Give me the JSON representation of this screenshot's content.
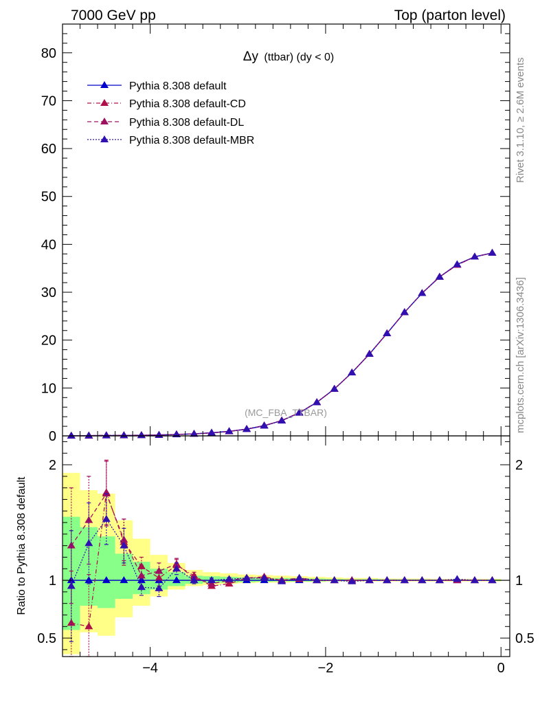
{
  "header": {
    "left": "7000 GeV pp",
    "right": "Top (parton level)"
  },
  "side_labels": {
    "rivet": "Rivet 3.1.10, ≥ 2.6M events",
    "mcplots": "mcplots.cern.ch [arXiv:1306.3436]"
  },
  "watermark": "(MC_FBA_TTBAR)",
  "colors": {
    "default": "#0000cc",
    "cd": "#b0104a",
    "dl": "#a01060",
    "mbr": "#3010b0",
    "band_yellow": "#ffff88",
    "band_green": "#88ff88"
  },
  "chart_data": [
    {
      "type": "line",
      "title_main": "Δy",
      "title_sub": "(ttbar) (dy < 0)",
      "xlabel": "",
      "ylabel": "",
      "xlim": [
        -5.0,
        0.1
      ],
      "ylim": [
        0,
        86
      ],
      "yticks": [
        0,
        10,
        20,
        30,
        40,
        50,
        60,
        70,
        80
      ],
      "xticks": [
        -4,
        -2,
        0
      ],
      "x": [
        -4.9,
        -4.7,
        -4.5,
        -4.3,
        -4.1,
        -3.9,
        -3.7,
        -3.5,
        -3.3,
        -3.1,
        -2.9,
        -2.7,
        -2.5,
        -2.3,
        -2.1,
        -1.9,
        -1.7,
        -1.5,
        -1.3,
        -1.1,
        -0.9,
        -0.7,
        -0.5,
        -0.3,
        -0.1
      ],
      "series": [
        {
          "name": "Pythia 8.308 default",
          "style": "solid",
          "values": [
            0.02,
            0.04,
            0.06,
            0.08,
            0.12,
            0.18,
            0.28,
            0.42,
            0.65,
            0.95,
            1.4,
            2.1,
            3.2,
            4.8,
            7.0,
            9.8,
            13.2,
            17.1,
            21.4,
            25.8,
            29.8,
            33.2,
            35.8,
            37.4,
            38.2
          ]
        },
        {
          "name": "Pythia 8.308 default-CD",
          "style": "dashdot",
          "values": [
            0.01,
            0.02,
            0.1,
            0.1,
            0.13,
            0.17,
            0.3,
            0.42,
            0.61,
            0.92,
            1.42,
            2.15,
            3.2,
            4.85,
            7.02,
            9.8,
            13.2,
            17.1,
            21.4,
            25.8,
            29.8,
            33.2,
            35.7,
            37.4,
            38.2
          ]
        },
        {
          "name": "Pythia 8.308 default-DL",
          "style": "dashed",
          "values": [
            0.03,
            0.06,
            0.1,
            0.1,
            0.14,
            0.19,
            0.3,
            0.42,
            0.62,
            0.93,
            1.42,
            2.14,
            3.2,
            4.85,
            7.0,
            9.8,
            13.2,
            17.1,
            21.4,
            25.8,
            29.8,
            33.2,
            35.7,
            37.4,
            38.2
          ]
        },
        {
          "name": "Pythia 8.308 default-MBR",
          "style": "dotted",
          "values": [
            0.02,
            0.05,
            0.09,
            0.1,
            0.11,
            0.17,
            0.29,
            0.42,
            0.64,
            0.96,
            1.42,
            2.14,
            3.15,
            4.85,
            7.0,
            9.8,
            13.2,
            17.1,
            21.4,
            25.8,
            29.8,
            33.2,
            35.8,
            37.4,
            38.2
          ]
        }
      ]
    },
    {
      "type": "line",
      "ylabel": "Ratio to Pythia 8.308 default",
      "xlim": [
        -5.0,
        0.1
      ],
      "ylim": [
        0.34,
        2.25
      ],
      "yticks_major": [
        0.5,
        1,
        2
      ],
      "xticks": [
        -4,
        -2,
        0
      ],
      "x": [
        -4.9,
        -4.7,
        -4.5,
        -4.3,
        -4.1,
        -3.9,
        -3.7,
        -3.5,
        -3.3,
        -3.1,
        -2.9,
        -2.7,
        -2.5,
        -2.3,
        -2.1,
        -1.9,
        -1.7,
        -1.5,
        -1.3,
        -1.1,
        -0.9,
        -0.7,
        -0.5,
        -0.3,
        -0.1
      ],
      "bands": {
        "yellow_lo": [
          0.36,
          0.55,
          0.52,
          0.68,
          0.78,
          0.86,
          0.92,
          0.95,
          0.96,
          0.97,
          0.975,
          0.98,
          0.98,
          0.985,
          0.985,
          0.99,
          0.99,
          0.99,
          0.99,
          0.99,
          0.99,
          0.99,
          0.99,
          0.99,
          0.99
        ],
        "yellow_hi": [
          1.93,
          1.78,
          1.75,
          1.52,
          1.36,
          1.22,
          1.15,
          1.09,
          1.07,
          1.06,
          1.05,
          1.045,
          1.04,
          1.035,
          1.03,
          1.025,
          1.02,
          1.02,
          1.015,
          1.015,
          1.015,
          1.012,
          1.012,
          1.012,
          1.012
        ],
        "green_lo": [
          0.57,
          0.78,
          0.76,
          0.84,
          0.88,
          0.92,
          0.95,
          0.97,
          0.98,
          0.98,
          0.985,
          0.988,
          0.99,
          0.99,
          0.99,
          0.993,
          0.993,
          0.995,
          0.995,
          0.995,
          0.995,
          0.995,
          0.995,
          0.995,
          0.995
        ],
        "green_hi": [
          1.55,
          1.46,
          1.38,
          1.23,
          1.16,
          1.1,
          1.07,
          1.04,
          1.035,
          1.03,
          1.025,
          1.02,
          1.02,
          1.018,
          1.015,
          1.012,
          1.01,
          1.01,
          1.008,
          1.008,
          1.008,
          1.006,
          1.006,
          1.006,
          1.006
        ]
      },
      "series": [
        {
          "name": "Pythia 8.308 default",
          "values": [
            1,
            1,
            1,
            1,
            1,
            1,
            1,
            1,
            1,
            1,
            1,
            1,
            1,
            1,
            1,
            1,
            1,
            1,
            1,
            1,
            1,
            1,
            1,
            1,
            1
          ]
        },
        {
          "name": "Pythia 8.308 default-CD",
          "values": [
            0.63,
            0.6,
            1.76,
            1.33,
            1.12,
            1.02,
            1.13,
            1.04,
            0.95,
            0.97,
            1.02,
            1.03,
            1.0,
            1.01,
            1.0,
            1.0,
            1.0,
            1.0,
            1.0,
            1.0,
            1.0,
            1.0,
            1.0,
            1.0,
            1.0
          ],
          "err": [
            0.45,
            0.45,
            0.28,
            0.2,
            0.08,
            0.07,
            0.05,
            0.03,
            0.02,
            0.015,
            0.01,
            0.01,
            0.01,
            0.008,
            0.008,
            0.006,
            0.006,
            0.005,
            0.005,
            0.005,
            0.005,
            0.005,
            0.005,
            0.005,
            0.005
          ]
        },
        {
          "name": "Pythia 8.308 default-DL",
          "values": [
            1.3,
            1.52,
            1.75,
            1.35,
            1.04,
            1.08,
            1.14,
            1.02,
            0.97,
            1.0,
            1.02,
            1.02,
            1.0,
            1.02,
            1.0,
            1.0,
            1.0,
            1.0,
            1.0,
            1.0,
            1.0,
            1.0,
            1.0,
            1.0,
            1.0
          ],
          "err": [
            0.5,
            0.38,
            0.28,
            0.18,
            0.09,
            0.07,
            0.05,
            0.03,
            0.02,
            0.015,
            0.01,
            0.01,
            0.01,
            0.008,
            0.008,
            0.006,
            0.006,
            0.005,
            0.005,
            0.005,
            0.005,
            0.005,
            0.005,
            0.005,
            0.005
          ]
        },
        {
          "name": "Pythia 8.308 default-MBR",
          "values": [
            0.95,
            1.32,
            1.53,
            1.3,
            0.94,
            0.93,
            1.1,
            1.0,
            1.0,
            1.01,
            1.02,
            1.02,
            0.99,
            1.02,
            1.0,
            1.0,
            0.99,
            1.0,
            1.0,
            1.0,
            1.0,
            1.0,
            1.01,
            1.0,
            1.0
          ],
          "err": [
            0.48,
            0.35,
            0.22,
            0.15,
            0.07,
            0.07,
            0.05,
            0.03,
            0.02,
            0.015,
            0.01,
            0.01,
            0.01,
            0.008,
            0.008,
            0.006,
            0.006,
            0.005,
            0.005,
            0.005,
            0.005,
            0.005,
            0.005,
            0.005,
            0.005
          ]
        }
      ]
    }
  ]
}
